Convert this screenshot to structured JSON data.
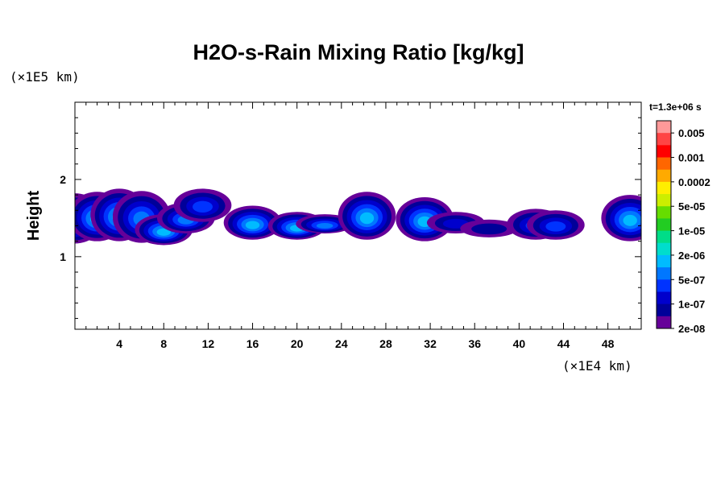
{
  "chart_data": {
    "type": "heatmap",
    "title": "H2O-s-Rain Mixing Ratio [kg/kg]",
    "ylabel": "Height",
    "xlabel": "",
    "x_unit": "(×1E4 km)",
    "y_unit": "(×1E5 km)",
    "time_label": "t=1.3e+06 s",
    "xlim": [
      0,
      51
    ],
    "ylim": [
      0.06,
      3.0
    ],
    "x_ticks": [
      {
        "value": 4,
        "label": "4"
      },
      {
        "value": 8,
        "label": "8"
      },
      {
        "value": 12,
        "label": "12"
      },
      {
        "value": 16,
        "label": "16"
      },
      {
        "value": 20,
        "label": "20"
      },
      {
        "value": 24,
        "label": "24"
      },
      {
        "value": 28,
        "label": "28"
      },
      {
        "value": 32,
        "label": "32"
      },
      {
        "value": 36,
        "label": "36"
      },
      {
        "value": 40,
        "label": "40"
      },
      {
        "value": 44,
        "label": "44"
      },
      {
        "value": 48,
        "label": "48"
      }
    ],
    "y_ticks": [
      {
        "value": 1,
        "label": "1"
      },
      {
        "value": 2,
        "label": "2"
      }
    ],
    "colorbar": {
      "levels": [
        "0.005",
        "0.001",
        "0.0002",
        "5e-05",
        "1e-05",
        "2e-06",
        "5e-07",
        "1e-07",
        "2e-08"
      ],
      "colors": [
        "#ff9999",
        "#ff4444",
        "#ff0000",
        "#ff6600",
        "#ffaa00",
        "#ffee00",
        "#ccee00",
        "#66dd00",
        "#22cc22",
        "#00dd88",
        "#00ddcc",
        "#00bbff",
        "#0077ff",
        "#0033ff",
        "#0000cc",
        "#000099",
        "#660099"
      ]
    },
    "cells": [
      {
        "x": 0,
        "y_bottom": 1.17,
        "y_top": 1.82,
        "peak_level": 6
      },
      {
        "x": 2,
        "y_bottom": 1.2,
        "y_top": 1.84,
        "peak_level": 6
      },
      {
        "x": 4,
        "y_bottom": 1.2,
        "y_top": 1.88,
        "peak_level": 6
      },
      {
        "x": 6,
        "y_bottom": 1.18,
        "y_top": 1.85,
        "peak_level": 5
      },
      {
        "x": 8,
        "y_bottom": 1.15,
        "y_top": 1.55,
        "peak_level": 6
      },
      {
        "x": 10,
        "y_bottom": 1.3,
        "y_top": 1.7,
        "peak_level": 5
      },
      {
        "x": 11.5,
        "y_bottom": 1.45,
        "y_top": 1.88,
        "peak_level": 4
      },
      {
        "x": 16,
        "y_bottom": 1.22,
        "y_top": 1.66,
        "peak_level": 6
      },
      {
        "x": 20,
        "y_bottom": 1.22,
        "y_top": 1.58,
        "peak_level": 6
      },
      {
        "x": 22.5,
        "y_bottom": 1.3,
        "y_top": 1.55,
        "peak_level": 5
      },
      {
        "x": 26.3,
        "y_bottom": 1.22,
        "y_top": 1.84,
        "peak_level": 6
      },
      {
        "x": 31.5,
        "y_bottom": 1.2,
        "y_top": 1.77,
        "peak_level": 6
      },
      {
        "x": 34.3,
        "y_bottom": 1.3,
        "y_top": 1.58,
        "peak_level": 3
      },
      {
        "x": 37.3,
        "y_bottom": 1.25,
        "y_top": 1.48,
        "peak_level": 2
      },
      {
        "x": 41.5,
        "y_bottom": 1.22,
        "y_top": 1.62,
        "peak_level": 4
      },
      {
        "x": 43.3,
        "y_bottom": 1.22,
        "y_top": 1.6,
        "peak_level": 4
      },
      {
        "x": 50,
        "y_bottom": 1.2,
        "y_top": 1.8,
        "peak_level": 6
      }
    ]
  }
}
